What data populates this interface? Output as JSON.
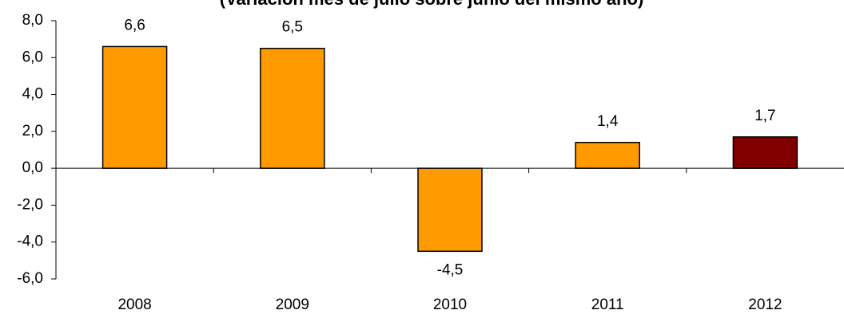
{
  "chart_data": {
    "type": "bar",
    "title": "(Variación mes de julio sobre junio del mismo año)",
    "categories": [
      "2008",
      "2009",
      "2010",
      "2011",
      "2012"
    ],
    "values": [
      6.6,
      6.5,
      -4.5,
      1.4,
      1.7
    ],
    "data_labels": [
      "6,6",
      "6,5",
      "-4,5",
      "1,4",
      "1,7"
    ],
    "ylim": [
      -6.0,
      8.0
    ],
    "yticks": [
      8.0,
      6.0,
      4.0,
      2.0,
      0.0,
      -2.0,
      -4.0,
      -6.0
    ],
    "ytick_labels": [
      "8,0",
      "6,0",
      "4,0",
      "2,0",
      "0,0",
      "-2,0",
      "-4,0",
      "-6,0"
    ],
    "xlabel": "",
    "ylabel": "",
    "grid": false,
    "colors": {
      "default_bar": "#FF9900",
      "highlight_bar": "#800000",
      "bar_stroke": "#000000"
    },
    "highlight_index": 4
  }
}
